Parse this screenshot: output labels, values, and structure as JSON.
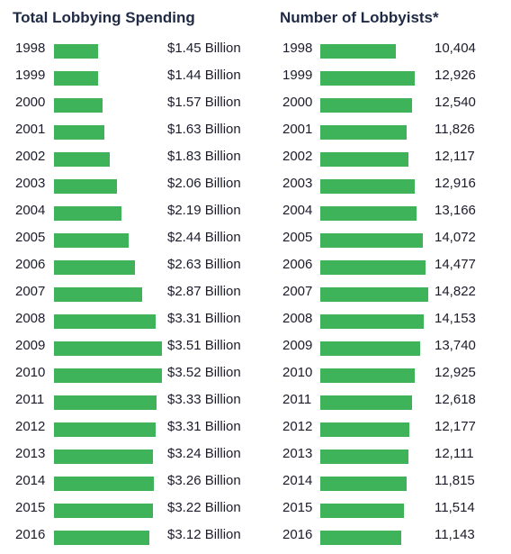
{
  "colors": {
    "bar": "#3eb35a",
    "title": "#1f2a44",
    "text": "#1c1c2b",
    "background": "#ffffff"
  },
  "chart_data": [
    {
      "type": "bar",
      "orientation": "horizontal",
      "title": "Total Lobbying Spending",
      "categories": [
        "1998",
        "1999",
        "2000",
        "2001",
        "2002",
        "2003",
        "2004",
        "2005",
        "2006",
        "2007",
        "2008",
        "2009",
        "2010",
        "2011",
        "2012",
        "2013",
        "2014",
        "2015",
        "2016"
      ],
      "values": [
        1.45,
        1.44,
        1.57,
        1.63,
        1.83,
        2.06,
        2.19,
        2.44,
        2.63,
        2.87,
        3.31,
        3.51,
        3.52,
        3.33,
        3.31,
        3.24,
        3.26,
        3.22,
        3.12
      ],
      "labels": [
        "$1.45 Billion",
        "$1.44 Billion",
        "$1.57 Billion",
        "$1.63 Billion",
        "$1.83 Billion",
        "$2.06 Billion",
        "$2.19 Billion",
        "$2.44 Billion",
        "$2.63 Billion",
        "$2.87 Billion",
        "$3.31 Billion",
        "$3.51 Billion",
        "$3.52 Billion",
        "$3.33 Billion",
        "$3.31 Billion",
        "$3.24 Billion",
        "$3.26 Billion",
        "$3.22 Billion",
        "$3.12 Billion"
      ],
      "grid": false,
      "legend": "none"
    },
    {
      "type": "bar",
      "orientation": "horizontal",
      "title": "Number of Lobbyists*",
      "categories": [
        "1998",
        "1999",
        "2000",
        "2001",
        "2002",
        "2003",
        "2004",
        "2005",
        "2006",
        "2007",
        "2008",
        "2009",
        "2010",
        "2011",
        "2012",
        "2013",
        "2014",
        "2015",
        "2016"
      ],
      "values": [
        10404,
        12926,
        12540,
        11826,
        12117,
        12916,
        13166,
        14072,
        14477,
        14822,
        14153,
        13740,
        12925,
        12618,
        12177,
        12111,
        11815,
        11514,
        11143
      ],
      "labels": [
        "10,404",
        "12,926",
        "12,540",
        "11,826",
        "12,117",
        "12,916",
        "13,166",
        "14,072",
        "14,477",
        "14,822",
        "14,153",
        "13,740",
        "12,925",
        "12,618",
        "12,177",
        "12,111",
        "11,815",
        "11,514",
        "11,143"
      ],
      "grid": false,
      "legend": "none"
    }
  ]
}
